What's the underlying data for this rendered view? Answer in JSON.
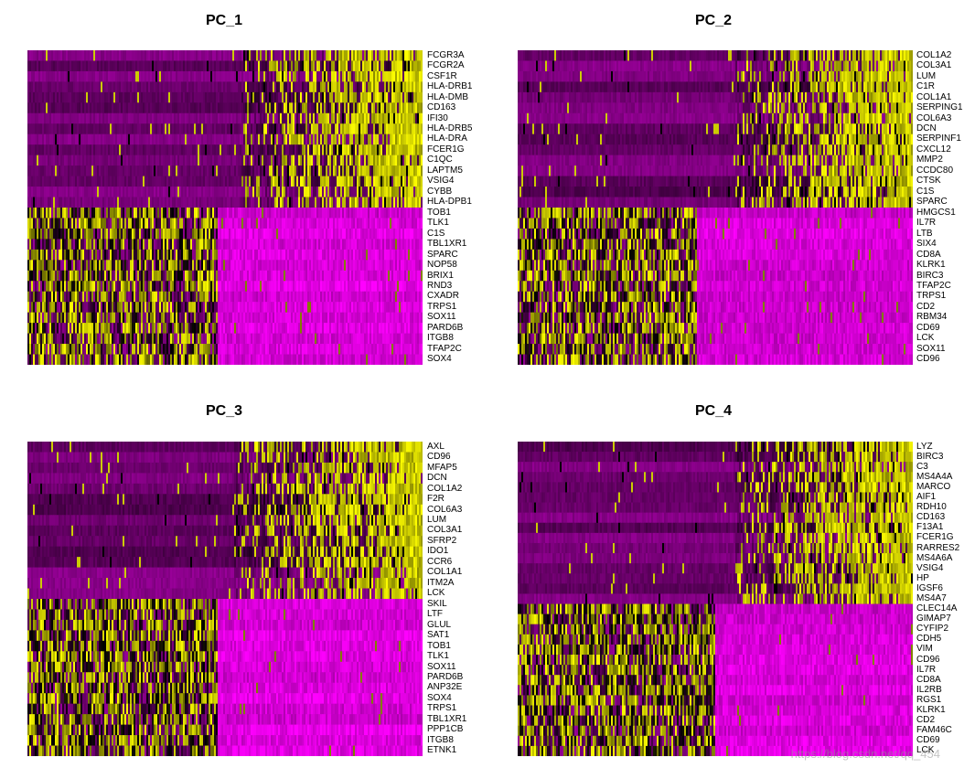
{
  "chart_data": [
    {
      "type": "heatmap",
      "title": "PC_1",
      "genes": [
        "FCGR3A",
        "FCGR2A",
        "CSF1R",
        "HLA-DRB1",
        "HLA-DMB",
        "CD163",
        "IFI30",
        "HLA-DRB5",
        "HLA-DRA",
        "FCER1G",
        "C1QC",
        "LAPTM5",
        "VSIG4",
        "CYBB",
        "HLA-DPB1",
        "TOB1",
        "TLK1",
        "C1S",
        "TBL1XR1",
        "SPARC",
        "NOP58",
        "BRIX1",
        "RND3",
        "CXADR",
        "TRPS1",
        "SOX11",
        "PARD6B",
        "ITGB8",
        "TFAP2C",
        "SOX4"
      ],
      "high_group": {
        "gene_count": 15,
        "high_side": "right",
        "split_fraction": 0.54
      },
      "low_group": {
        "gene_count": 15,
        "high_side": "left",
        "split_fraction": 0.48
      }
    },
    {
      "type": "heatmap",
      "title": "PC_2",
      "genes": [
        "COL1A2",
        "COL3A1",
        "LUM",
        "C1R",
        "COL1A1",
        "SERPING1",
        "COL6A3",
        "DCN",
        "SERPINF1",
        "CXCL12",
        "MMP2",
        "CCDC80",
        "CTSK",
        "C1S",
        "SPARC",
        "HMGCS1",
        "IL7R",
        "LTB",
        "SIX4",
        "CD8A",
        "KLRK1",
        "BIRC3",
        "TFAP2C",
        "TRPS1",
        "CD2",
        "RBM34",
        "CD69",
        "LCK",
        "SOX11",
        "CD96"
      ],
      "high_group": {
        "gene_count": 15,
        "high_side": "right",
        "split_fraction": 0.55
      },
      "low_group": {
        "gene_count": 15,
        "high_side": "left",
        "split_fraction": 0.45
      }
    },
    {
      "type": "heatmap",
      "title": "PC_3",
      "genes": [
        "AXL",
        "CD96",
        "MFAP5",
        "DCN",
        "COL1A2",
        "F2R",
        "COL6A3",
        "LUM",
        "COL3A1",
        "SFRP2",
        "IDO1",
        "CCR6",
        "COL1A1",
        "ITM2A",
        "LCK",
        "SKIL",
        "LTF",
        "GLUL",
        "SAT1",
        "TOB1",
        "TLK1",
        "SOX11",
        "PARD6B",
        "ANP32E",
        "SOX4",
        "TRPS1",
        "TBL1XR1",
        "PPP1CB",
        "ITGB8",
        "ETNK1"
      ],
      "high_group": {
        "gene_count": 15,
        "high_side": "right",
        "split_fraction": 0.52
      },
      "low_group": {
        "gene_count": 15,
        "high_side": "left",
        "split_fraction": 0.48
      }
    },
    {
      "type": "heatmap",
      "title": "PC_4",
      "genes": [
        "LYZ",
        "BIRC3",
        "C3",
        "MS4A4A",
        "MARCO",
        "AIF1",
        "RDH10",
        "CD163",
        "F13A1",
        "FCER1G",
        "RARRES2",
        "MS4A6A",
        "VSIG4",
        "HP",
        "IGSF6",
        "MS4A7",
        "CLEC14A",
        "GIMAP7",
        "CYFIP2",
        "CDH5",
        "VIM",
        "CD96",
        "IL7R",
        "CD8A",
        "IL2RB",
        "RGS1",
        "KLRK1",
        "CD2",
        "FAM46C",
        "CD69",
        "LCK"
      ],
      "high_group": {
        "gene_count": 16,
        "high_side": "right",
        "split_fraction": 0.55
      },
      "low_group": {
        "gene_count": 15,
        "high_side": "left",
        "split_fraction": 0.5
      }
    }
  ],
  "colors": {
    "low": "#ff00ff",
    "mid": "#000000",
    "high": "#ffff00",
    "base_dark": "#7a1a7a"
  },
  "watermark": "https://blog.csdn.net/qq_454"
}
